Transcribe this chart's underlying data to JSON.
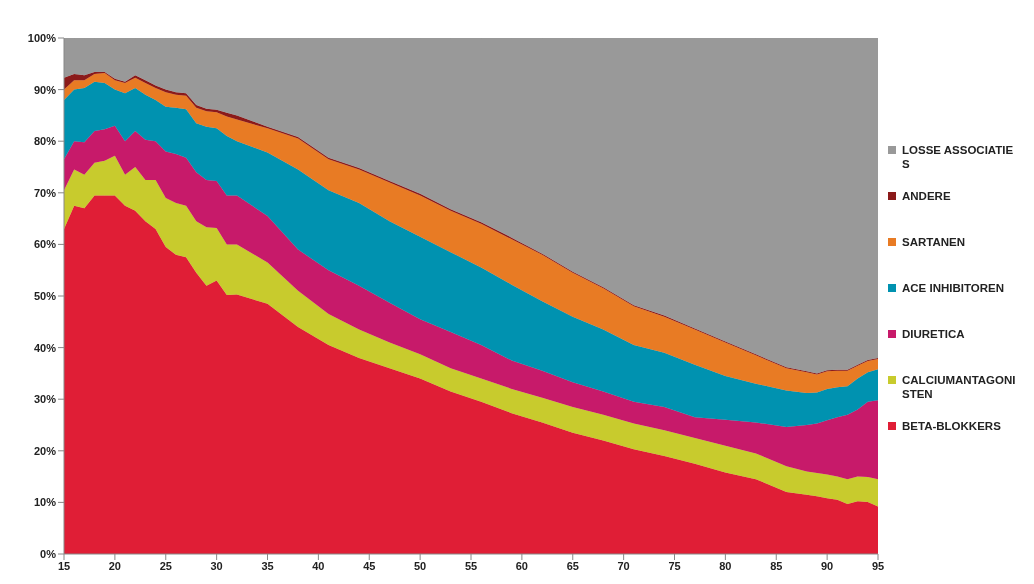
{
  "chart_data": {
    "type": "area",
    "stacked": true,
    "legend": "right",
    "x": [
      15,
      16,
      17,
      18,
      19,
      20,
      21,
      22,
      23,
      24,
      25,
      26,
      27,
      28,
      29,
      30,
      31,
      32,
      35,
      38,
      41,
      44,
      47,
      50,
      53,
      56,
      59,
      62,
      65,
      68,
      71,
      74,
      77,
      80,
      83,
      86,
      88,
      89,
      90,
      91,
      92,
      93,
      94,
      95
    ],
    "xlim": [
      15,
      95
    ],
    "xticks": [
      15,
      20,
      25,
      30,
      35,
      40,
      45,
      50,
      55,
      60,
      65,
      70,
      75,
      80,
      85,
      90,
      95
    ],
    "ylim": [
      0,
      100
    ],
    "yticks": [
      {
        "value": 0,
        "label": "0%"
      },
      {
        "value": 10,
        "label": "10%"
      },
      {
        "value": 20,
        "label": "20%"
      },
      {
        "value": 30,
        "label": "30%"
      },
      {
        "value": 40,
        "label": "40%"
      },
      {
        "value": 50,
        "label": "50%"
      },
      {
        "value": 60,
        "label": "60%"
      },
      {
        "value": 70,
        "label": "70%"
      },
      {
        "value": 80,
        "label": "80%"
      },
      {
        "value": 90,
        "label": "90%"
      },
      {
        "value": 100,
        "label": "100%"
      }
    ],
    "series": [
      {
        "name": "BETA-BLOKKERS",
        "color": "#e01e36",
        "values": [
          63,
          67.5,
          67,
          69.5,
          69.5,
          69.5,
          67.5,
          66.5,
          64.5,
          63,
          59.5,
          58,
          57.5,
          54.5,
          52,
          53,
          50.2,
          50.3,
          48.5,
          44,
          40.5,
          38,
          36,
          34,
          31.5,
          29.5,
          27.3,
          25.5,
          23.5,
          22,
          20.3,
          19,
          17.5,
          15.8,
          14.5,
          12,
          11.5,
          11.2,
          10.8,
          10.5,
          9.7,
          10.2,
          10.1,
          9.2
        ]
      },
      {
        "name": "CALCIUMANTAGONISTEN",
        "color": "#c8cb2d",
        "values": [
          7.5,
          7,
          6.5,
          6.3,
          6.7,
          7.7,
          6,
          8.5,
          8,
          9.5,
          9.5,
          10,
          10,
          10,
          11.3,
          10.2,
          9.8,
          9.7,
          8,
          7,
          6,
          5.5,
          5,
          4.7,
          4.5,
          4.5,
          4.7,
          4.8,
          5,
          5,
          5,
          5,
          5,
          5.2,
          5,
          5,
          4.5,
          4.5,
          4.6,
          4.5,
          4.8,
          4.8,
          4.8,
          5.3
        ]
      },
      {
        "name": "DIURETICA",
        "color": "#c71a6a",
        "values": [
          6,
          5.5,
          6.3,
          6.2,
          6.1,
          5.8,
          6.5,
          7,
          7.8,
          7.5,
          9,
          9.5,
          9.3,
          9.5,
          9.2,
          9.1,
          9.5,
          9.5,
          9,
          8,
          8.5,
          8.5,
          7.7,
          6.8,
          7,
          6.5,
          5.5,
          5.2,
          4.8,
          4.5,
          4.2,
          4.5,
          4,
          5,
          6,
          7.6,
          9,
          9.6,
          10.5,
          11.5,
          12.5,
          13,
          14.6,
          15.3
        ]
      },
      {
        "name": "ACE INHIBITOREN",
        "color": "#0092b0",
        "values": [
          11.5,
          10,
          10.5,
          9.5,
          9,
          7,
          9.3,
          8.3,
          8.7,
          8,
          8.7,
          9,
          9.4,
          9.5,
          10.3,
          10.2,
          11.5,
          10.5,
          12.3,
          15.5,
          15.5,
          16,
          15.8,
          16,
          15.5,
          15,
          14.7,
          13.5,
          12.7,
          12,
          11,
          10.5,
          10.2,
          8.5,
          7.5,
          7.1,
          6.2,
          6,
          6.1,
          5.8,
          5.5,
          6,
          5.7,
          6
        ]
      },
      {
        "name": "SARTANEN",
        "color": "#e87b24",
        "values": [
          2,
          1.8,
          1.5,
          1.5,
          1.9,
          1.8,
          2,
          2,
          2.3,
          2.3,
          2.8,
          2.5,
          2.6,
          3,
          3,
          3.1,
          3.8,
          4.2,
          4.7,
          6,
          6,
          6.5,
          7.5,
          8,
          8,
          8.5,
          8.8,
          9,
          8.5,
          8,
          7.5,
          7,
          6.8,
          6.5,
          5.5,
          4.3,
          4,
          3.5,
          3.4,
          3.2,
          3,
          2.5,
          2.2,
          2
        ]
      },
      {
        "name": "ANDERE",
        "color": "#8b1a1a",
        "values": [
          2.3,
          1.2,
          1,
          0.4,
          0.2,
          0.3,
          0.2,
          0.5,
          0.5,
          0.5,
          0.5,
          0.5,
          0.5,
          0.5,
          0.5,
          0.5,
          0.7,
          0.8,
          0.3,
          0.3,
          0.3,
          0.3,
          0.3,
          0.3,
          0.3,
          0.3,
          0.3,
          0.2,
          0.2,
          0.2,
          0.2,
          0.2,
          0.2,
          0.2,
          0.2,
          0.2,
          0.2,
          0.2,
          0.2,
          0.2,
          0.2,
          0.2,
          0.2,
          0.2
        ]
      },
      {
        "name": "LOSSE ASSOCIATIES",
        "color": "#999999",
        "values": [
          7.7,
          7,
          7.2,
          6.6,
          6.6,
          7.9,
          8.5,
          7.2,
          8.2,
          9.2,
          10,
          10.5,
          10.7,
          13,
          13.7,
          13.9,
          14.5,
          15,
          17.2,
          19.2,
          23.2,
          25.2,
          27.7,
          30.2,
          33.2,
          35.7,
          38.7,
          41.8,
          45.3,
          48.3,
          51.8,
          53.8,
          56.3,
          58.8,
          61.3,
          63.8,
          64.6,
          65,
          64.4,
          64.3,
          64.3,
          63.3,
          62.4,
          62
        ]
      }
    ]
  }
}
